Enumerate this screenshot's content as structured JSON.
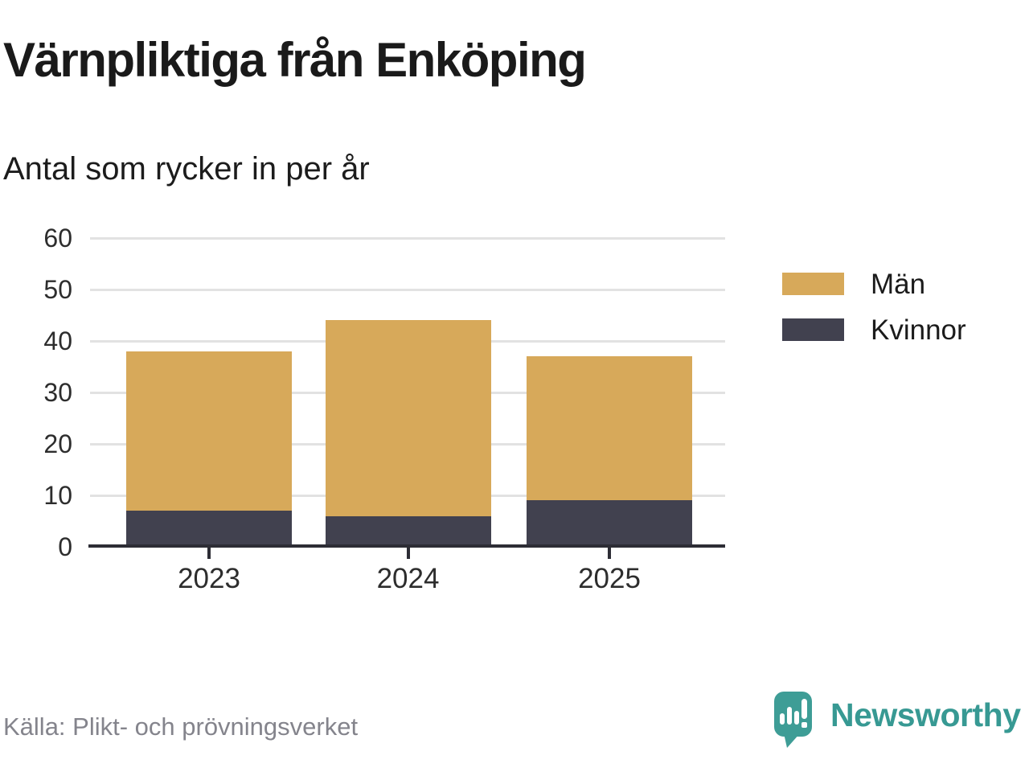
{
  "colors": {
    "men": "#D7A95A",
    "women": "#41414F",
    "grid": "#E2E2E2",
    "axis": "#2D2D35",
    "tick_text": "#2D2D2D",
    "title_text": "#1A1A1A",
    "muted_text": "#84848C",
    "brand_teal": "#3E9D96",
    "brand_teal_text": "#379993"
  },
  "chart_data": {
    "type": "bar",
    "stacked": true,
    "title": "Värnpliktiga från Enköping",
    "subtitle": "Antal som rycker in per år",
    "categories": [
      "2023",
      "2024",
      "2025"
    ],
    "series": [
      {
        "name": "Män",
        "color": "#D7A95A",
        "values": [
          31,
          38,
          28
        ]
      },
      {
        "name": "Kvinnor",
        "color": "#41414F",
        "values": [
          7,
          6,
          9
        ]
      }
    ],
    "stack_bottom": "Kvinnor",
    "totals": [
      38,
      44,
      37
    ],
    "ylim": [
      0,
      60
    ],
    "yticks": [
      0,
      10,
      20,
      30,
      40,
      50,
      60
    ],
    "grid": "horizontal",
    "legend_position": "right",
    "xlabel": "",
    "ylabel": ""
  },
  "footer": {
    "source": "Källa: Plikt- och prövningsverket",
    "logo_text": "Newsworthy"
  }
}
